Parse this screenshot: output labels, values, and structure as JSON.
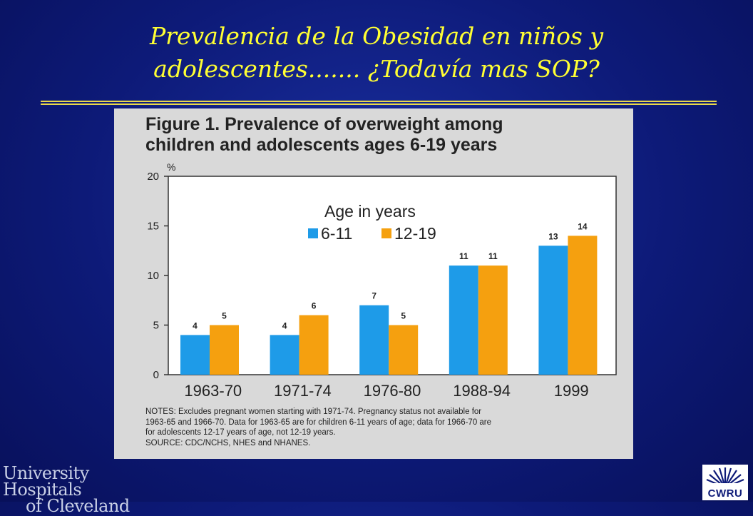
{
  "slide": {
    "title_line1": "Prevalencia de la Obesidad en niños y",
    "title_line2": "adolescentes....... ¿Todavía mas SOP?",
    "title_color": "#ffff33",
    "background_color": "#0d1a78"
  },
  "figure": {
    "title_line1": "Figure 1. Prevalence of overweight among",
    "title_line2": "children and adolescents ages 6-19 years",
    "notes": [
      "NOTES: Excludes pregnant women starting with 1971-74.  Pregnancy status not available for",
      "1963-65 and 1966-70. Data for 1963-65 are for children 6-11 years of age; data for 1966-70 are",
      "for adolescents 12-17 years of age, not 12-19 years.",
      "SOURCE: CDC/NCHS, NHES and NHANES."
    ]
  },
  "chart_data": {
    "type": "bar",
    "title": "Figure 1. Prevalence of overweight among children and adolescents ages 6-19 years",
    "ylabel": "%",
    "xlabel": "",
    "ylim": [
      0,
      20
    ],
    "yticks": [
      0,
      5,
      10,
      15,
      20
    ],
    "grid": false,
    "legend_title": "Age in years",
    "legend_position": "top-center",
    "categories": [
      "1963-70",
      "1971-74",
      "1976-80",
      "1988-94",
      "1999"
    ],
    "series": [
      {
        "name": "6-11",
        "color": "#1e9be8",
        "values": [
          4,
          4,
          7,
          11,
          13
        ]
      },
      {
        "name": "12-19",
        "color": "#f5a00f",
        "values": [
          5,
          6,
          5,
          11,
          14
        ]
      }
    ]
  },
  "logos": {
    "left_line1": "University Hospitals",
    "left_line2": "of Cleveland",
    "right_text": "CWRU",
    "right_icon": "sunburst-icon"
  }
}
